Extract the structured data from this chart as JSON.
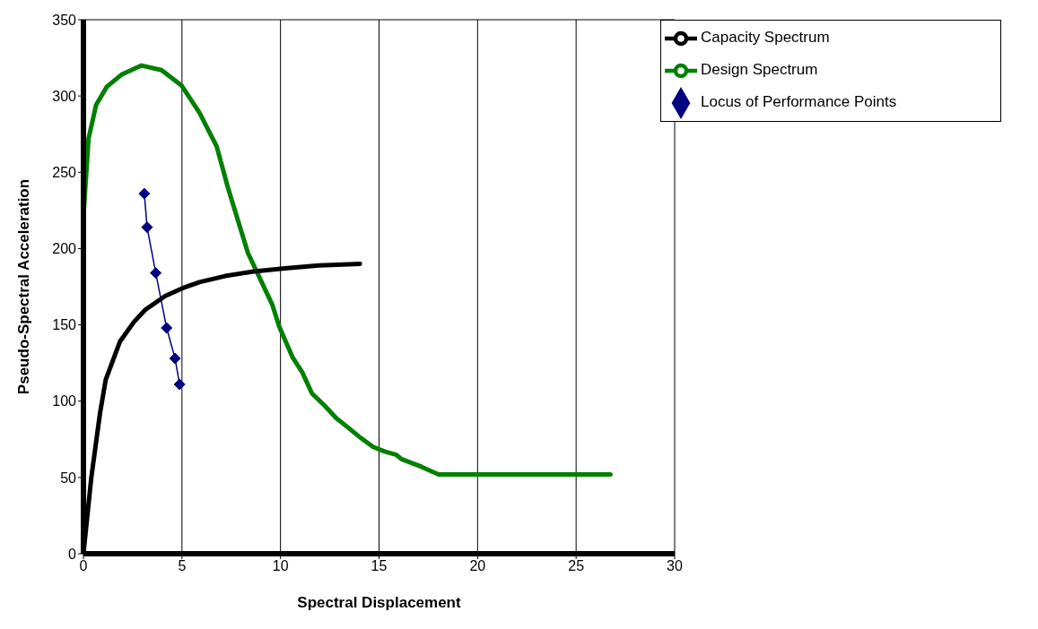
{
  "chart_data": {
    "type": "line",
    "xlabel": "Spectral Displacement",
    "ylabel": "Pseudo-Spectral Acceleration",
    "xlim": [
      0,
      30
    ],
    "xticks": [
      0,
      5,
      10,
      15,
      20,
      25,
      30
    ],
    "ylim": [
      0,
      350
    ],
    "yticks": [
      0,
      50,
      100,
      150,
      200,
      250,
      300,
      350
    ],
    "grid": true,
    "legend": "top right",
    "line_style": "solid",
    "series": [
      {
        "name": "Locus of Performance Points",
        "color": "#000080",
        "marker": "diamond",
        "x": [
          3.09,
          3.23,
          3.67,
          4.22,
          4.65,
          4.88
        ],
        "values": [
          236,
          214,
          184,
          148,
          128,
          111
        ]
      },
      {
        "name": "Design Spectrum",
        "color": "#008000",
        "marker": "none",
        "x": [
          0.03,
          0.26,
          0.64,
          1.18,
          1.93,
          2.95,
          3.96,
          4.97,
          5.89,
          6.76,
          7.33,
          8.35,
          9.59,
          9.93,
          10.6,
          11.1,
          11.6,
          12.24,
          12.82,
          13.4,
          14.06,
          14.7,
          15.28,
          15.85,
          16.14,
          17.15,
          18.02,
          26.74
        ],
        "values": [
          227,
          272,
          294,
          306,
          314,
          320,
          317,
          307,
          289,
          267,
          240,
          197,
          163,
          149,
          129,
          119,
          105,
          97,
          89,
          83,
          76,
          70,
          67,
          65,
          62,
          57,
          52,
          52
        ]
      },
      {
        "name": "Capacity Spectrum",
        "color": "#000000",
        "marker": "none",
        "x": [
          0,
          0.4,
          0.84,
          1.13,
          1.85,
          2.57,
          3.15,
          4.16,
          5.02,
          5.89,
          7.19,
          8.63,
          10.22,
          11.95,
          14.03
        ],
        "values": [
          0,
          50,
          92,
          114,
          139,
          152,
          160,
          169,
          174,
          178,
          182,
          185,
          187,
          189,
          190
        ]
      }
    ]
  }
}
